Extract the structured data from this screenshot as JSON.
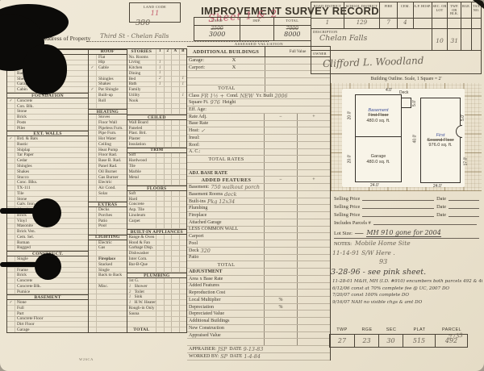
{
  "colors": {
    "paper": "#ece4d1",
    "ink": "#3c362b",
    "red": "#c25b6c",
    "blue": "#44549c",
    "pencil": "#6b6356",
    "pen": "#45403a"
  },
  "header": {
    "land_code": {
      "label": "LAND CODE",
      "value": "11"
    },
    "title": "IMPROVEMENT SURVEY RECORD",
    "sheet_note": "Sheet 1 & 2",
    "valuation": {
      "caption": "ASSESSED VALUATION",
      "cols": [
        "LAND",
        "IMP.",
        "TOTAL"
      ],
      "old_land": "2500",
      "land": "3000",
      "imp": "",
      "old_total": "7000",
      "total": "8000"
    },
    "districts": {
      "cols": [
        "ROAD DISTRICT",
        "SCHOOL DISTRICT",
        "FIRE",
        "CEM.",
        "A.P. HOSP.",
        "SEC. OR LOT",
        "TWP. OR BLK.",
        "RGE.",
        "TAX NO."
      ],
      "values": [
        "1",
        "129",
        "7",
        "4"
      ],
      "description_label": "DESCRIPTION",
      "description": "Chelan Falls",
      "sec": "10",
      "twp": "31",
      "owner_label": "OWNER",
      "owner": "Clifford L. Woodland"
    },
    "address": {
      "number": "380",
      "label": "Address of Property",
      "value": "Third St - Chelan Falls"
    }
  },
  "checklist_col1": [
    {
      "h": "BUILDING"
    },
    {
      "l": "Dwelling",
      "c": 1
    },
    {
      "l": "Duplex"
    },
    {
      "l": "Apartment"
    },
    {
      "l": "Barn"
    },
    {
      "l": "Shed"
    },
    {
      "l": "Garage"
    },
    {
      "l": "Cabin"
    },
    {
      "h": "FOUNDATION"
    },
    {
      "l": "Concrete",
      "c": 1
    },
    {
      "l": "Con. Blk."
    },
    {
      "l": "Stone"
    },
    {
      "l": "Brick"
    },
    {
      "l": "Posts"
    },
    {
      "l": "Piles"
    },
    {
      "h": "EXT. WALLS"
    },
    {
      "l": "Brd. & Bats",
      "c": 1
    },
    {
      "l": "Rustic"
    },
    {
      "l": "Shiplap"
    },
    {
      "l": "Tar Paper"
    },
    {
      "l": "Cedar"
    },
    {
      "l": "Shingles"
    },
    {
      "l": "Shakes"
    },
    {
      "l": "Stucco"
    },
    {
      "l": "Conc. Blks."
    },
    {
      "l": "TX-111"
    },
    {
      "l": "Tile"
    },
    {
      "l": "Stone"
    },
    {
      "l": "Galv. Iron"
    },
    {
      "l": "Aluminum"
    },
    {
      "l": "Brick"
    },
    {
      "l": "Vinyl"
    },
    {
      "l": "Masonite"
    },
    {
      "l": "Brick Ven."
    },
    {
      "l": "Cem. Sel."
    },
    {
      "l": "Roman"
    },
    {
      "l": "Rugged"
    },
    {
      "h": "CONSTRUCT."
    },
    {
      "l": "Single"
    },
    {
      "l": "Double",
      "c": 1
    },
    {
      "l": "Frame"
    },
    {
      "l": "Brick"
    },
    {
      "l": "Concrete"
    },
    {
      "l": "Concrete Blk."
    },
    {
      "l": "Pumice"
    },
    {
      "h": "BASEMENT"
    },
    {
      "l": "None",
      "c": 1
    },
    {
      "l": "Full"
    },
    {
      "l": "Part"
    },
    {
      "l": "Concrete Floor"
    },
    {
      "l": "Dirt Floor"
    },
    {
      "l": "Garage"
    }
  ],
  "checklist_col2": [
    {
      "h": "ROOF"
    },
    {
      "l": "Flat"
    },
    {
      "l": "Hip"
    },
    {
      "l": "Gable",
      "c": 1
    },
    {},
    {
      "l": "Shingles"
    },
    {
      "l": "Shakes"
    },
    {
      "l": "Pat Shingle",
      "c": 1
    },
    {
      "l": "Built-up"
    },
    {
      "l": "Roll"
    },
    {},
    {
      "h": "HEATING"
    },
    {
      "l": "Stoves"
    },
    {
      "l": "Floor Wall"
    },
    {
      "l": "Pipeless Furn."
    },
    {
      "l": "Pipe Furn."
    },
    {
      "l": "Hot Water"
    },
    {
      "l": "Ceiling"
    },
    {
      "l": "Heat Pump"
    },
    {
      "l": "Floor Rad."
    },
    {
      "l": "Base B. Rad."
    },
    {
      "l": "Panel Rad."
    },
    {
      "l": "Oil Burner"
    },
    {
      "l": "Gas Burner"
    },
    {
      "l": "Electric"
    },
    {
      "l": "Air Cond."
    },
    {
      "l": "Solar"
    },
    {},
    {
      "h": "EXTRAS"
    },
    {
      "l": "Decks"
    },
    {
      "l": "Porches"
    },
    {
      "l": "Patio"
    },
    {
      "l": "Pool"
    },
    {},
    {
      "h": "LIGHTING"
    },
    {
      "l": "Electric"
    },
    {
      "l": "Gas"
    },
    {},
    {
      "l": "Fireplace",
      "b": 1
    },
    {
      "l": "Stacked"
    },
    {
      "l": "Single"
    },
    {
      "l": "Back to Back"
    },
    {},
    {
      "l": "Misc."
    },
    {},
    {},
    {},
    {},
    {},
    {},
    {},
    {}
  ],
  "checklist_col3": [
    {
      "hc": "STORIES",
      "v": [
        "1",
        "2",
        "A",
        "B"
      ]
    },
    {
      "l": "No. Rooms"
    },
    {
      "l": "Living",
      "v": [
        "1",
        "",
        "",
        ""
      ]
    },
    {
      "l": "Kitchen",
      "v": [
        "1",
        "",
        "",
        ""
      ]
    },
    {
      "l": "Dining",
      "v": [
        "1",
        "",
        "",
        ""
      ]
    },
    {
      "l": "Bed",
      "v": [
        "2",
        "",
        "",
        "1"
      ]
    },
    {
      "l": "Bath",
      "v": [
        "1",
        "",
        "",
        "1"
      ]
    },
    {
      "l": "Family"
    },
    {
      "l": "Utility",
      "v": [
        "",
        "",
        "",
        "1"
      ]
    },
    {
      "l": "Nook"
    },
    {},
    {},
    {
      "h": "CEILED"
    },
    {
      "l": "Wall Board"
    },
    {
      "l": "Paneled"
    },
    {
      "l": "Plast. Brd."
    },
    {
      "l": "Plaster"
    },
    {
      "l": "Insulation"
    },
    {
      "h": "TRIM"
    },
    {
      "l": "Soft"
    },
    {
      "l": "Hardwood"
    },
    {
      "l": "Tile"
    },
    {
      "l": "Marble"
    },
    {
      "l": "Metal"
    },
    {},
    {
      "h": "FLOORS"
    },
    {
      "l": "Soft"
    },
    {
      "l": "Hard"
    },
    {
      "l": "Concrete"
    },
    {
      "l": "Asp. Tile"
    },
    {
      "l": "Linoleum"
    },
    {
      "l": "Carpet"
    },
    {},
    {
      "h": "BUILT-IN APPLIANCES"
    },
    {
      "l": "Range & Oven"
    },
    {
      "l": "Hood & Fan"
    },
    {
      "l": "Garbage Disp."
    },
    {
      "l": "Dishwasher"
    },
    {
      "l": "Inter Com."
    },
    {
      "l": "Bar-B-Que"
    },
    {},
    {
      "h": "PLUMBING"
    },
    {
      "l": "1st G."
    },
    {
      "l": "Shower",
      "n": "1"
    },
    {
      "l": "Toilet",
      "n": "2"
    },
    {
      "l": "Sink",
      "n": "1"
    },
    {
      "l": "H.W. Heater",
      "n": "1"
    },
    {
      "l": "Rough-in Only"
    },
    {
      "l": "Sauna"
    },
    {},
    {},
    {
      "hc": "TOTAL"
    }
  ],
  "middle": {
    "header": "ADDITIONAL BUILDINGS",
    "full_value": "Full Value",
    "rows": [
      {
        "p": [
          [
            "Garage:",
            ""
          ]
        ],
        "x": "X",
        "m": 1
      },
      {
        "p": [
          [
            "Carport:",
            ""
          ]
        ],
        "x": "X",
        "m": 1
      },
      {
        "m": 1
      },
      {
        "m": 1
      },
      {
        "ctr": "TOTAL",
        "m": 1
      },
      {
        "p": [
          [
            "Class",
            "FR 1½ +"
          ],
          [
            "Cond.",
            "NEW"
          ],
          [
            "Yr. Built",
            "2006"
          ]
        ],
        "full": 1
      },
      {
        "p": [
          [
            "Square Ft.",
            "976"
          ],
          [
            "Height",
            ""
          ]
        ],
        "full": 1
      },
      {
        "p": [
          [
            "Eff. Age:",
            ""
          ]
        ],
        "full": 1
      },
      {
        "p": [
          [
            "Rate Adj.",
            ""
          ]
        ],
        "a": "−",
        "b": "+"
      },
      {
        "p": [
          [
            "Base Rate",
            ""
          ]
        ]
      },
      {
        "p": [
          [
            "Heat:",
            "✓"
          ]
        ]
      },
      {
        "p": [
          [
            "Insul:",
            ""
          ]
        ]
      },
      {
        "p": [
          [
            "Roof:",
            ""
          ]
        ]
      },
      {
        "p": [
          [
            "A. C.:",
            ""
          ]
        ]
      },
      {
        "ctr": "TOTAL RATES"
      },
      {},
      {
        "p": [
          [
            "ADJ. BASE RATE",
            ""
          ]
        ],
        "hdr": 1
      },
      {
        "ctr": "ADDED FEATURES",
        "hdr": 1,
        "a": "−",
        "b": "+"
      },
      {
        "p": [
          [
            "Basement:",
            "750 walkout porch"
          ]
        ]
      },
      {
        "p": [
          [
            "Basement Rooms",
            "deck"
          ]
        ]
      },
      {
        "p": [
          [
            "Built-ins",
            "Pkg 12x34"
          ]
        ]
      },
      {
        "p": [
          [
            "Plumbing",
            ""
          ]
        ]
      },
      {
        "p": [
          [
            "Fireplace",
            ""
          ]
        ]
      },
      {
        "p": [
          [
            "Attached Garage",
            ""
          ]
        ]
      },
      {
        "p": [
          [
            "LESS COMMON WALL",
            ""
          ]
        ]
      },
      {
        "p": [
          [
            "Carport",
            ""
          ]
        ]
      },
      {
        "p": [
          [
            "Pool",
            ""
          ]
        ]
      },
      {
        "p": [
          [
            "Deck",
            "320"
          ]
        ]
      },
      {
        "p": [
          [
            "Patio",
            ""
          ]
        ]
      },
      {
        "ctr": "TOTAL"
      },
      {
        "p": [
          [
            "ADJUSTMENT",
            ""
          ]
        ],
        "hdr": 1
      },
      {
        "p": [
          [
            "Area",
            ""
          ],
          [
            "x Base Rate",
            ""
          ]
        ]
      },
      {
        "p": [
          [
            "Added Features",
            ""
          ]
        ]
      },
      {
        "p": [
          [
            "Reproduction Cost",
            ""
          ]
        ]
      },
      {
        "p": [
          [
            "Local Multiplier",
            ""
          ]
        ],
        "a": "%"
      },
      {
        "p": [
          [
            "Depreciation",
            ""
          ]
        ],
        "a": "%"
      },
      {
        "p": [
          [
            "Depreciated Value",
            ""
          ]
        ]
      },
      {
        "p": [
          [
            "Additional Buildings",
            ""
          ]
        ]
      },
      {
        "p": [
          [
            "New Construction",
            ""
          ]
        ]
      },
      {
        "p": [
          [
            "Appraised Value",
            ""
          ]
        ]
      },
      {},
      {
        "p": [
          [
            "APPRAISER:",
            "JSP"
          ],
          [
            "DATE",
            "9-13-83"
          ]
        ],
        "full": 1
      },
      {
        "p": [
          [
            "WORKED BY:",
            "SP"
          ],
          [
            "DATE",
            "1-4-84"
          ]
        ],
        "full": 1
      }
    ]
  },
  "outline": {
    "caption": "Building Outline.  Scale, 1 Square = 2'",
    "fig1": {
      "floor_hand": "Basement",
      "floor_struck": "First Floor",
      "floor_area": "480.0 sq. ft.",
      "garage_label": "Garage",
      "garage_area": "480.0 sq. ft.",
      "dim_left_top": "20.0'",
      "dim_left_bottom": "20.0'",
      "dim_bottom": "24.0'",
      "deck_label": "Deck",
      "deck_width": "4.0'",
      "deck_height": "5.0'"
    },
    "fig2": {
      "floor_hand": "First",
      "floor_struck": "Second Floor",
      "floor_area": "976.0 sq. ft.",
      "dim_left": "40.0'",
      "dim_bottom": "24.0'",
      "dim_right_lower": "17.0'",
      "dim_notch": "5.0'"
    }
  },
  "sales": {
    "rows": [
      {
        "label": "Selling Price",
        "date_label": "Date"
      },
      {
        "label": "Selling Price",
        "date_label": "Date"
      },
      {
        "label": "Selling Price",
        "date_label": "Date"
      }
    ],
    "includes": "Includes Parcels #",
    "lot_size_label": "Lot Size:",
    "lot_size_struck": "–––",
    "lot_size_value": "MH 910 gone for 2004"
  },
  "notes": [
    {
      "s": "n1",
      "label": "NOTES:",
      "text": "Mobile Home Site"
    },
    {
      "s": "n2",
      "text": "11-14-91  S/W Here ."
    },
    {
      "s": "n3",
      "text": "93"
    },
    {
      "s": "n4",
      "text": "3-28-96 -  see pink sheet."
    },
    {
      "s": "n5",
      "text": "11-28-01 M&H, MH (I.D. #910) encumbers both parcels 492 & 405."
    },
    {
      "s": "n5",
      "text": "6/12/06 const at 70% complete fee @ UC, 2007 DO"
    },
    {
      "s": "n5",
      "text": "7/20/07 const 100% complete DO"
    },
    {
      "s": "n5",
      "text": "9/16/07 NAH no visible chgs & amt DO"
    }
  ],
  "plat": {
    "cols": [
      "TWP",
      "RGE",
      "SEC",
      "PLAT",
      "PARCEL"
    ],
    "values": [
      "27",
      "23",
      "30",
      "515",
      "492"
    ],
    "extra": "2733"
  },
  "form_code": "W26CA"
}
